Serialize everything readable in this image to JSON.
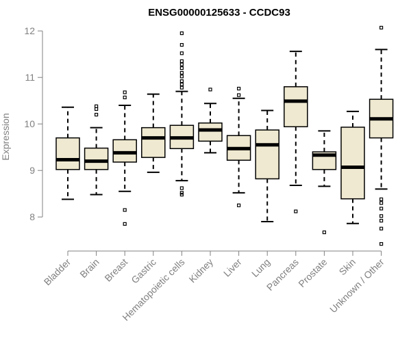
{
  "chart_data": {
    "type": "boxplot",
    "title": "ENSG00000125633 - CCDC93",
    "ylabel": "Expression",
    "ylim": [
      7.4,
      12.15
    ],
    "yticks": [
      8,
      9,
      10,
      11,
      12
    ],
    "box_fill": "#efe9d1",
    "categories": [
      "Bladder",
      "Brain",
      "Breast",
      "Gastric",
      "Hematopoietic cells",
      "Kidney",
      "Liver",
      "Lung",
      "Pancreas",
      "Prostate",
      "Skin",
      "Unknown / Other"
    ],
    "boxes": [
      {
        "q1": 9.02,
        "median": 9.23,
        "q3": 9.7,
        "whislo": 8.38,
        "whishi": 10.36,
        "outliers": []
      },
      {
        "q1": 9.02,
        "median": 9.2,
        "q3": 9.48,
        "whislo": 8.48,
        "whishi": 9.92,
        "outliers": [
          10.2,
          10.32,
          10.38
        ]
      },
      {
        "q1": 9.18,
        "median": 9.38,
        "q3": 9.66,
        "whislo": 8.55,
        "whishi": 10.4,
        "outliers": [
          8.15,
          7.85,
          10.57,
          10.68
        ]
      },
      {
        "q1": 9.28,
        "median": 9.7,
        "q3": 9.92,
        "whislo": 8.96,
        "whishi": 10.64,
        "outliers": []
      },
      {
        "q1": 9.47,
        "median": 9.7,
        "q3": 9.97,
        "whislo": 8.78,
        "whishi": 10.7,
        "outliers": [
          8.62,
          8.52,
          8.48,
          10.78,
          10.85,
          10.92,
          11.02,
          11.1,
          11.2,
          11.28,
          11.35,
          11.52,
          11.7,
          11.95
        ]
      },
      {
        "q1": 9.63,
        "median": 9.87,
        "q3": 10.02,
        "whislo": 9.38,
        "whishi": 10.44,
        "outliers": [
          10.74
        ]
      },
      {
        "q1": 9.22,
        "median": 9.47,
        "q3": 9.75,
        "whislo": 8.52,
        "whishi": 10.55,
        "outliers": [
          8.25,
          10.62,
          10.76
        ]
      },
      {
        "q1": 8.82,
        "median": 9.55,
        "q3": 9.87,
        "whislo": 7.9,
        "whishi": 10.29,
        "outliers": []
      },
      {
        "q1": 9.94,
        "median": 10.49,
        "q3": 10.8,
        "whislo": 8.68,
        "whishi": 11.56,
        "outliers": [
          8.12
        ]
      },
      {
        "q1": 9.02,
        "median": 9.33,
        "q3": 9.4,
        "whislo": 8.66,
        "whishi": 9.85,
        "outliers": [
          7.67
        ]
      },
      {
        "q1": 8.39,
        "median": 9.07,
        "q3": 9.93,
        "whislo": 7.86,
        "whishi": 10.27,
        "outliers": []
      },
      {
        "q1": 9.7,
        "median": 10.11,
        "q3": 10.53,
        "whislo": 8.6,
        "whishi": 11.6,
        "outliers": [
          8.38,
          8.3,
          8.18,
          8.02,
          7.92,
          7.75,
          7.42,
          12.07
        ]
      }
    ]
  }
}
